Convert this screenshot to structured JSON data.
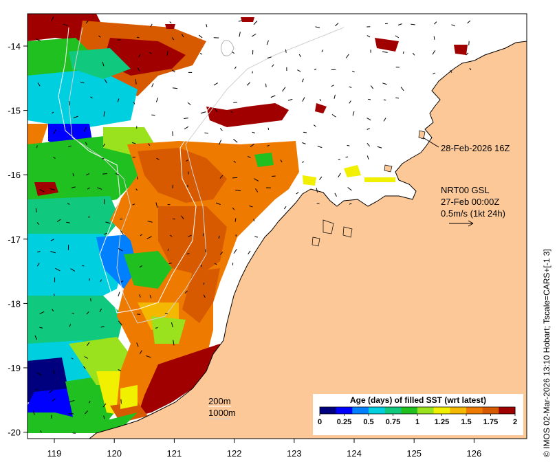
{
  "map": {
    "x_ticks": [
      "119",
      "120",
      "121",
      "122",
      "123",
      "124",
      "125",
      "126"
    ],
    "y_ticks": [
      "-14",
      "-15",
      "-16",
      "-17",
      "-18",
      "-19",
      "-20"
    ],
    "timestamp_label": "28-Feb-2026 16Z",
    "current_product": "NRT00 GSL",
    "current_time": "27-Feb 00:00Z",
    "current_scale": "0.5m/s (1kt 24h)",
    "isobath_200": "200m",
    "isobath_1000": "1000m",
    "credit": "© IMOS 02-Mar-2026 13:10 Hobart; Tscale=CARS+[-1 3]",
    "land_color": "#fcc898",
    "cloud_color": "#ffffff"
  },
  "colorbar": {
    "title": "Age (days) of filled SST (wrt latest)",
    "ticks": [
      "0",
      "0.25",
      "0.5",
      "0.75",
      "1",
      "1.25",
      "1.5",
      "1.75",
      "2"
    ],
    "colors": [
      "#00007f",
      "#0000ff",
      "#0080ff",
      "#00cfe0",
      "#11c87f",
      "#20c020",
      "#9ae21e",
      "#f0f000",
      "#f5b800",
      "#ef7a00",
      "#d85a00",
      "#a00000"
    ]
  }
}
